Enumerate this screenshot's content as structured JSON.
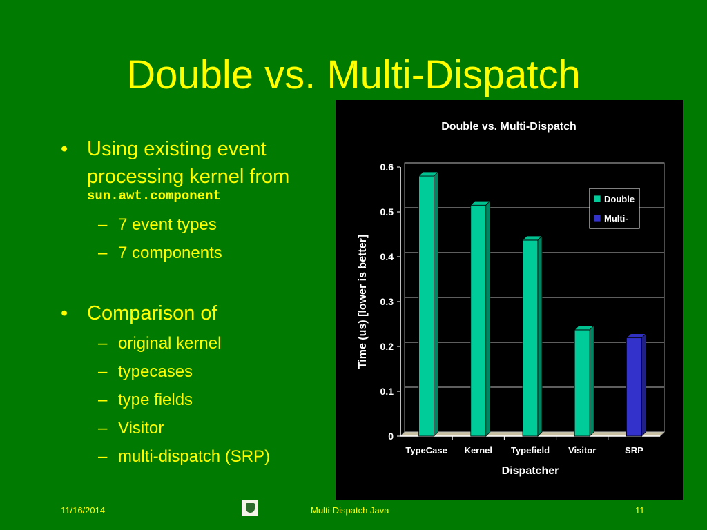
{
  "slide": {
    "title": "Double vs. Multi-Dispatch",
    "bullets": [
      {
        "text_line1": "Using existing event",
        "text_line2": "processing kernel from",
        "code": "sun.awt.component",
        "subitems": [
          "7 event types",
          "7 components"
        ]
      },
      {
        "text": "Comparison of",
        "subitems": [
          "original kernel",
          "typecases",
          "type fields",
          "Visitor",
          "multi-dispatch (SRP)"
        ]
      }
    ],
    "bullet_glyph": "•",
    "dash_glyph": "–"
  },
  "footer": {
    "date": "11/16/2014",
    "center": "Multi-Dispatch Java",
    "page": "11",
    "logo_icon": "university-seal-icon"
  },
  "chart_data": {
    "type": "bar",
    "title": "Double vs. Multi-Dispatch",
    "xlabel": "Dispatcher",
    "ylabel": "Time (us) [lower is better]",
    "categories": [
      "TypeCase",
      "Kernel",
      "Typefield",
      "Visitor",
      "SRP"
    ],
    "series": [
      {
        "name": "Double",
        "values": [
          0.58,
          0.515,
          0.437,
          0.237,
          null
        ],
        "color": "#00cc99"
      },
      {
        "name": "Multi-",
        "values": [
          null,
          null,
          null,
          null,
          0.219
        ],
        "color": "#3333cc"
      }
    ],
    "ylim": [
      0,
      0.6
    ],
    "yticks": [
      "0",
      "0.1",
      "0.2",
      "0.3",
      "0.4",
      "0.5",
      "0.6"
    ],
    "grid": true,
    "legend": "right"
  }
}
